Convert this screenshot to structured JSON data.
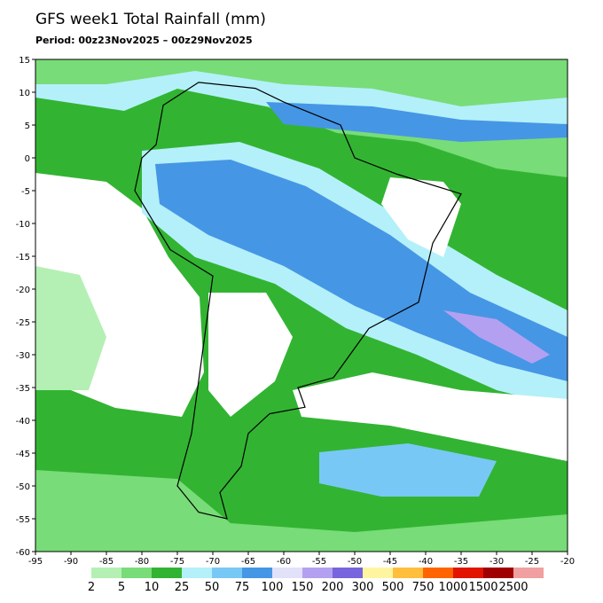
{
  "header": {
    "title": "GFS week1 Total Rainfall (mm)",
    "period": "Period: 00z23Nov2025 – 00z29Nov2025"
  },
  "map": {
    "xlim": [
      -95,
      -20
    ],
    "ylim": [
      -60,
      15
    ],
    "xticks": [
      -95,
      -90,
      -85,
      -80,
      -75,
      -70,
      -65,
      -60,
      -55,
      -50,
      -45,
      -40,
      -35,
      -30,
      -25,
      -20
    ],
    "yticks": [
      15,
      10,
      5,
      0,
      -5,
      -10,
      -15,
      -20,
      -25,
      -30,
      -35,
      -40,
      -45,
      -50,
      -55,
      -60
    ]
  },
  "legend": {
    "levels": [
      2,
      5,
      10,
      25,
      50,
      75,
      100,
      150,
      200,
      300,
      500,
      750,
      1000,
      1500,
      2500
    ],
    "colors": [
      "#b4f0b4",
      "#78dc78",
      "#32b432",
      "#b4f0fa",
      "#78c8f5",
      "#4696e6",
      "#e1e1fa",
      "#b4a0f0",
      "#7864dc",
      "#fff5a0",
      "#ffbe3c",
      "#ff6400",
      "#e11400",
      "#a00000",
      "#f0a0a0"
    ]
  }
}
